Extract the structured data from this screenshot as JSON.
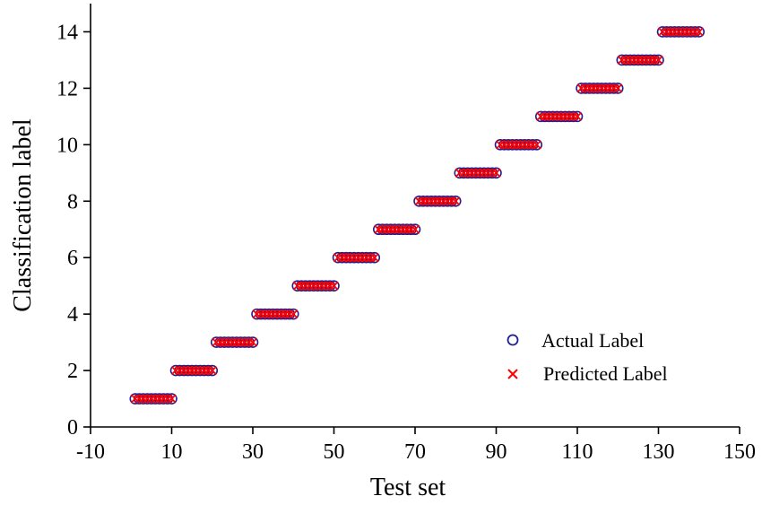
{
  "chart_data": {
    "type": "scatter",
    "xlabel": "Test set",
    "ylabel": "Classification label",
    "xlim": [
      -10,
      150
    ],
    "ylim": [
      0,
      15
    ],
    "xticks": [
      -10,
      10,
      30,
      50,
      70,
      90,
      110,
      130,
      150
    ],
    "yticks": [
      0,
      2,
      4,
      6,
      8,
      10,
      12,
      14
    ],
    "grid": false,
    "legend_position": "bottom-right",
    "colors": {
      "actual": "#1f1f8f",
      "predicted": "#ff0000"
    },
    "series": [
      {
        "name": "Actual Label",
        "marker": "circle",
        "points_per_class": 10,
        "segments": [
          {
            "label": 1,
            "x_start": 1,
            "x_end": 10
          },
          {
            "label": 2,
            "x_start": 11,
            "x_end": 20
          },
          {
            "label": 3,
            "x_start": 21,
            "x_end": 30
          },
          {
            "label": 4,
            "x_start": 31,
            "x_end": 40
          },
          {
            "label": 5,
            "x_start": 41,
            "x_end": 50
          },
          {
            "label": 6,
            "x_start": 51,
            "x_end": 60
          },
          {
            "label": 7,
            "x_start": 61,
            "x_end": 70
          },
          {
            "label": 8,
            "x_start": 71,
            "x_end": 80
          },
          {
            "label": 9,
            "x_start": 81,
            "x_end": 90
          },
          {
            "label": 10,
            "x_start": 91,
            "x_end": 100
          },
          {
            "label": 11,
            "x_start": 101,
            "x_end": 110
          },
          {
            "label": 12,
            "x_start": 111,
            "x_end": 120
          },
          {
            "label": 13,
            "x_start": 121,
            "x_end": 130
          },
          {
            "label": 14,
            "x_start": 131,
            "x_end": 140
          }
        ]
      },
      {
        "name": "Predicted Label",
        "marker": "x",
        "points_per_class": 10,
        "segments": [
          {
            "label": 1,
            "x_start": 1,
            "x_end": 10
          },
          {
            "label": 2,
            "x_start": 11,
            "x_end": 20
          },
          {
            "label": 3,
            "x_start": 21,
            "x_end": 30
          },
          {
            "label": 4,
            "x_start": 31,
            "x_end": 40
          },
          {
            "label": 5,
            "x_start": 41,
            "x_end": 50
          },
          {
            "label": 6,
            "x_start": 51,
            "x_end": 60
          },
          {
            "label": 7,
            "x_start": 61,
            "x_end": 70
          },
          {
            "label": 8,
            "x_start": 71,
            "x_end": 80
          },
          {
            "label": 9,
            "x_start": 81,
            "x_end": 90
          },
          {
            "label": 10,
            "x_start": 91,
            "x_end": 100
          },
          {
            "label": 11,
            "x_start": 101,
            "x_end": 110
          },
          {
            "label": 12,
            "x_start": 111,
            "x_end": 120
          },
          {
            "label": 13,
            "x_start": 121,
            "x_end": 130
          },
          {
            "label": 14,
            "x_start": 131,
            "x_end": 140
          }
        ]
      }
    ]
  }
}
